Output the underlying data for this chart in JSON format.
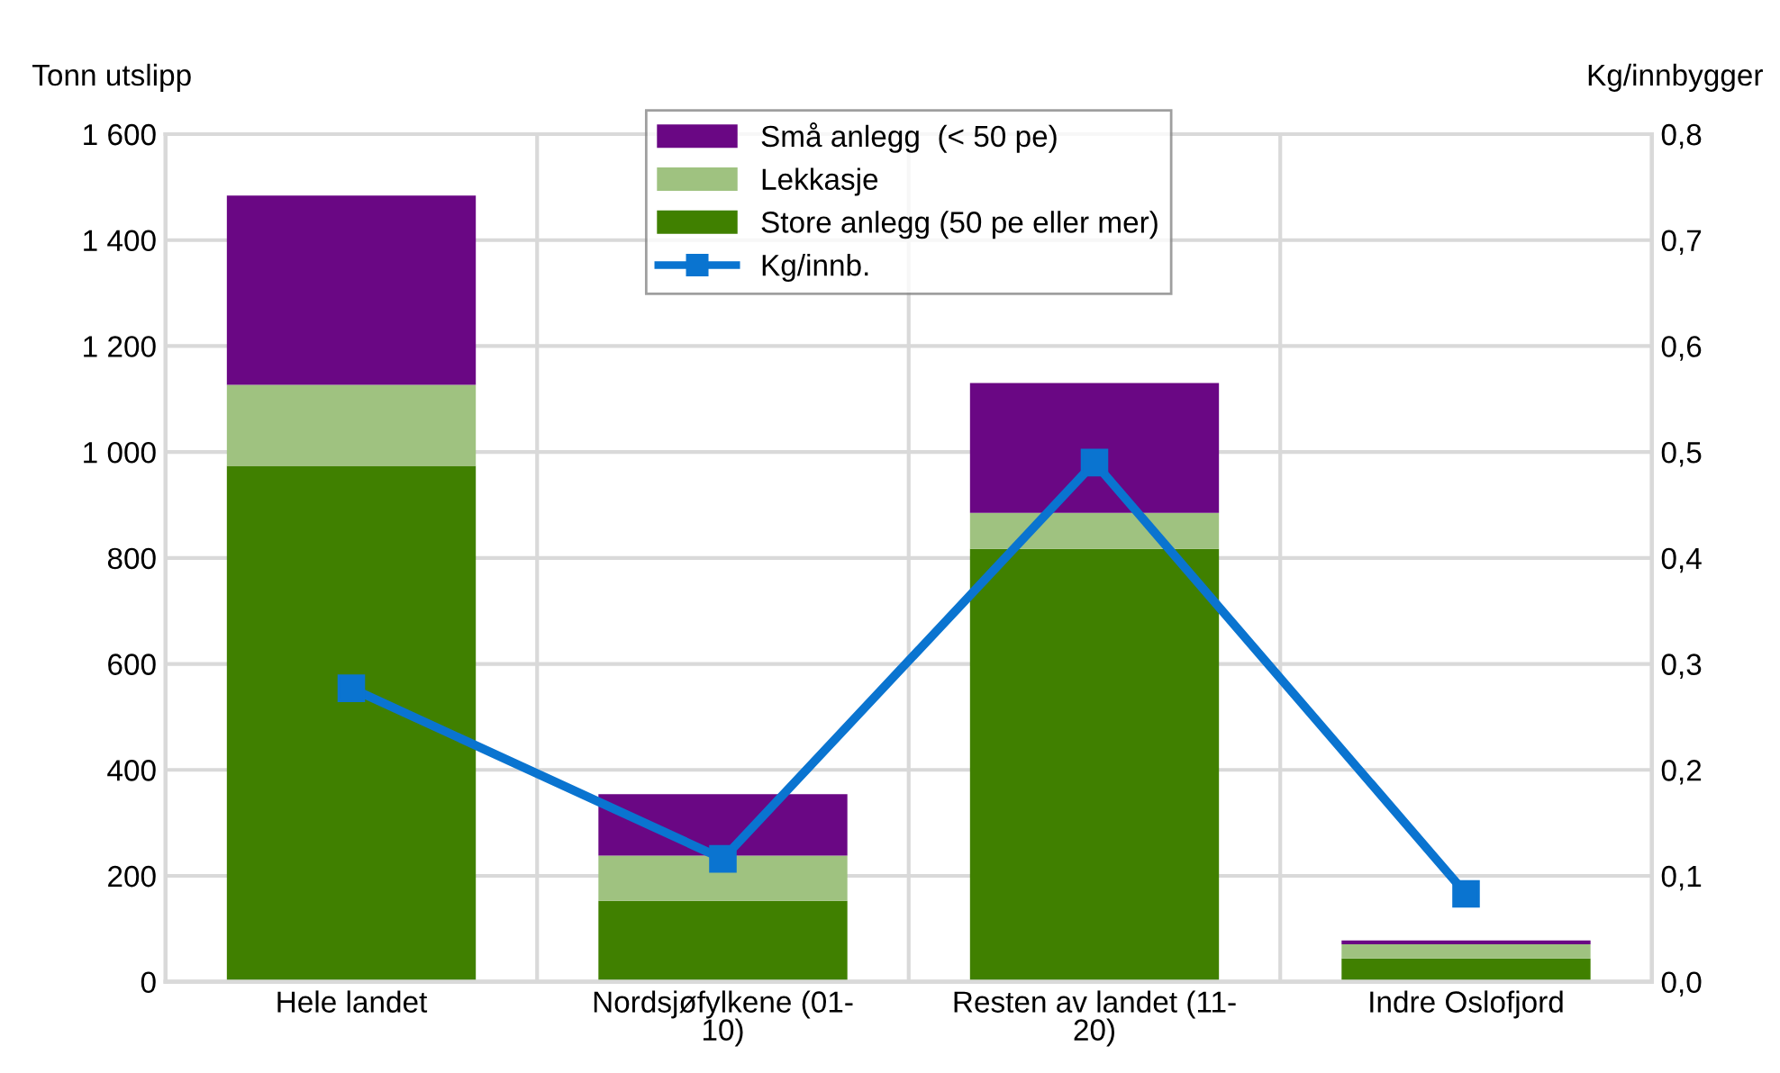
{
  "chart_data": {
    "type": "bar",
    "stacked": true,
    "ylabel": "Tonn utslipp",
    "y2label": "Kg/innbygger",
    "categories": [
      "Hele landet",
      "Nordsjøfylkene (01-\n10)",
      "Resten av landet (11-\n20)",
      "Indre Oslofjord"
    ],
    "series": [
      {
        "name": "Store anlegg (50 pe eller mer)",
        "color": "#408000",
        "values": [
          974,
          153,
          817,
          44
        ]
      },
      {
        "name": "Lekkasje",
        "color": "#9fc280",
        "values": [
          153,
          85,
          68,
          27
        ]
      },
      {
        "name": "Små anlegg  (< 50 pe)",
        "color": "#6a0784",
        "values": [
          357,
          116,
          245,
          7
        ]
      },
      {
        "name": "Kg/innb.",
        "type": "line",
        "axis": "y2",
        "color": "#0a74d0",
        "marker": "square",
        "values": [
          0.277,
          0.116,
          0.49,
          0.083
        ]
      }
    ],
    "ylim": [
      0,
      1600
    ],
    "yticks": [
      {
        "value": 0,
        "label": "0"
      },
      {
        "value": 200,
        "label": "200"
      },
      {
        "value": 400,
        "label": "400"
      },
      {
        "value": 600,
        "label": "600"
      },
      {
        "value": 800,
        "label": "800"
      },
      {
        "value": 1000,
        "label": "1 000"
      },
      {
        "value": 1200,
        "label": "1 200"
      },
      {
        "value": 1400,
        "label": "1 400"
      },
      {
        "value": 1600,
        "label": "1 600"
      }
    ],
    "y2lim": [
      0,
      0.8
    ],
    "y2ticks": [
      {
        "value": 0,
        "label": "0,0"
      },
      {
        "value": 0.1,
        "label": "0,1"
      },
      {
        "value": 0.2,
        "label": "0,2"
      },
      {
        "value": 0.3,
        "label": "0,3"
      },
      {
        "value": 0.4,
        "label": "0,4"
      },
      {
        "value": 0.5,
        "label": "0,5"
      },
      {
        "value": 0.6,
        "label": "0,6"
      },
      {
        "value": 0.7,
        "label": "0,7"
      },
      {
        "value": 0.8,
        "label": "0,8"
      }
    ],
    "grid": true,
    "legend": "top"
  }
}
